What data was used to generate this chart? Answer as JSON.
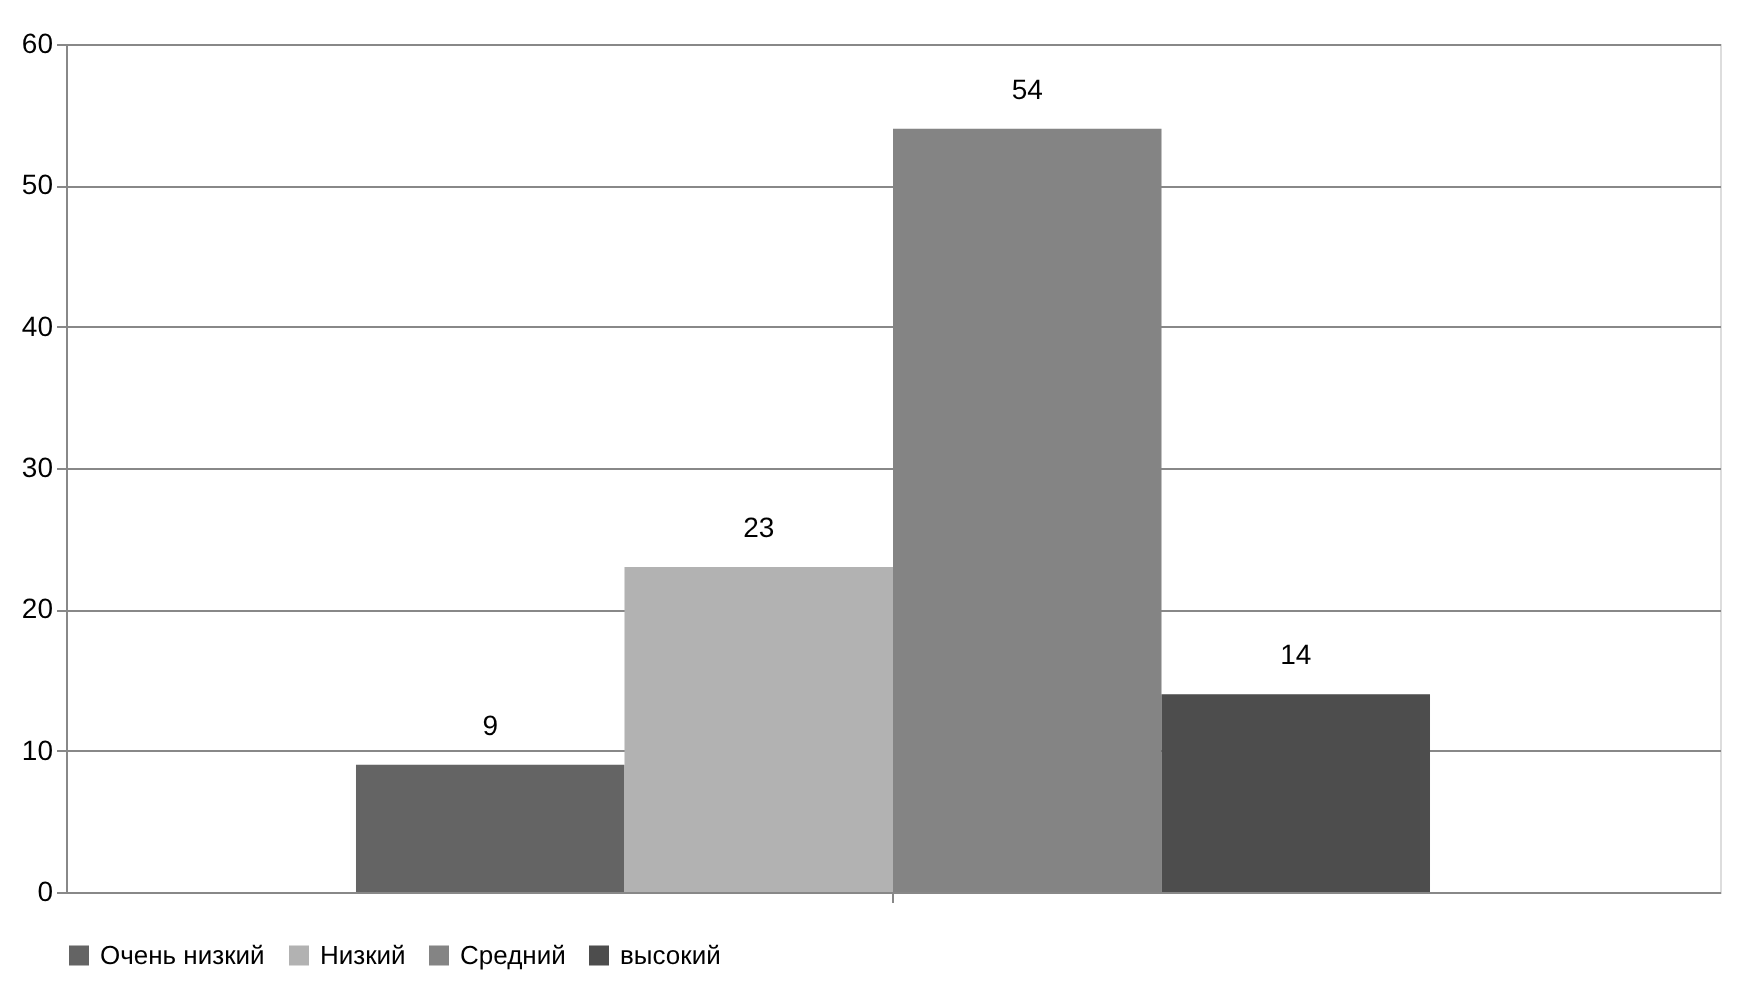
{
  "chart_data": {
    "type": "bar",
    "categories": [
      null
    ],
    "series": [
      {
        "name": "Очень низкий",
        "color": "#646464",
        "values": [
          9
        ]
      },
      {
        "name": "Низкий",
        "color": "#b2b2b2",
        "values": [
          23
        ]
      },
      {
        "name": "Средний",
        "color": "#848484",
        "values": [
          54
        ]
      },
      {
        "name": "высокий",
        "color": "#4d4d4d",
        "values": [
          14
        ]
      }
    ],
    "ylim": [
      0,
      60
    ],
    "yticks": [
      0,
      10,
      20,
      30,
      40,
      50,
      60
    ],
    "grid": "y",
    "legend": "bottom",
    "data_labels": true
  }
}
